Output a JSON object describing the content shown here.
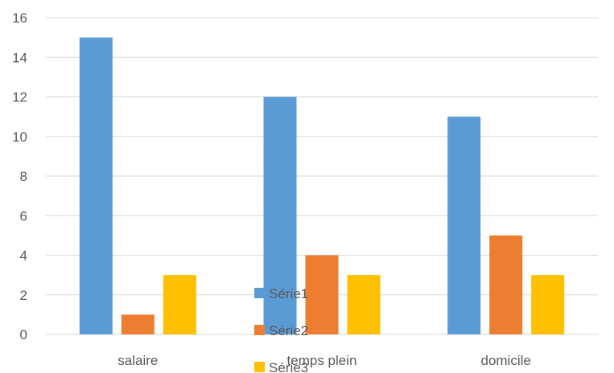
{
  "chart_data": {
    "type": "bar",
    "categories": [
      "salaire",
      "temps plein",
      "domicile"
    ],
    "series": [
      {
        "name": "Série1",
        "values": [
          15,
          12,
          11
        ],
        "color": "#5B9BD5"
      },
      {
        "name": "Série2",
        "values": [
          1,
          4,
          5
        ],
        "color": "#ED7D31"
      },
      {
        "name": "Série3",
        "values": [
          3,
          3,
          3
        ],
        "color": "#FFC000"
      }
    ],
    "ylim": [
      0,
      16
    ],
    "yticks": [
      "0",
      "2",
      "4",
      "6",
      "8",
      "10",
      "12",
      "14",
      "16"
    ],
    "grid": true,
    "gridColor": "#D9D9D9",
    "legend": "center-overlapping"
  }
}
